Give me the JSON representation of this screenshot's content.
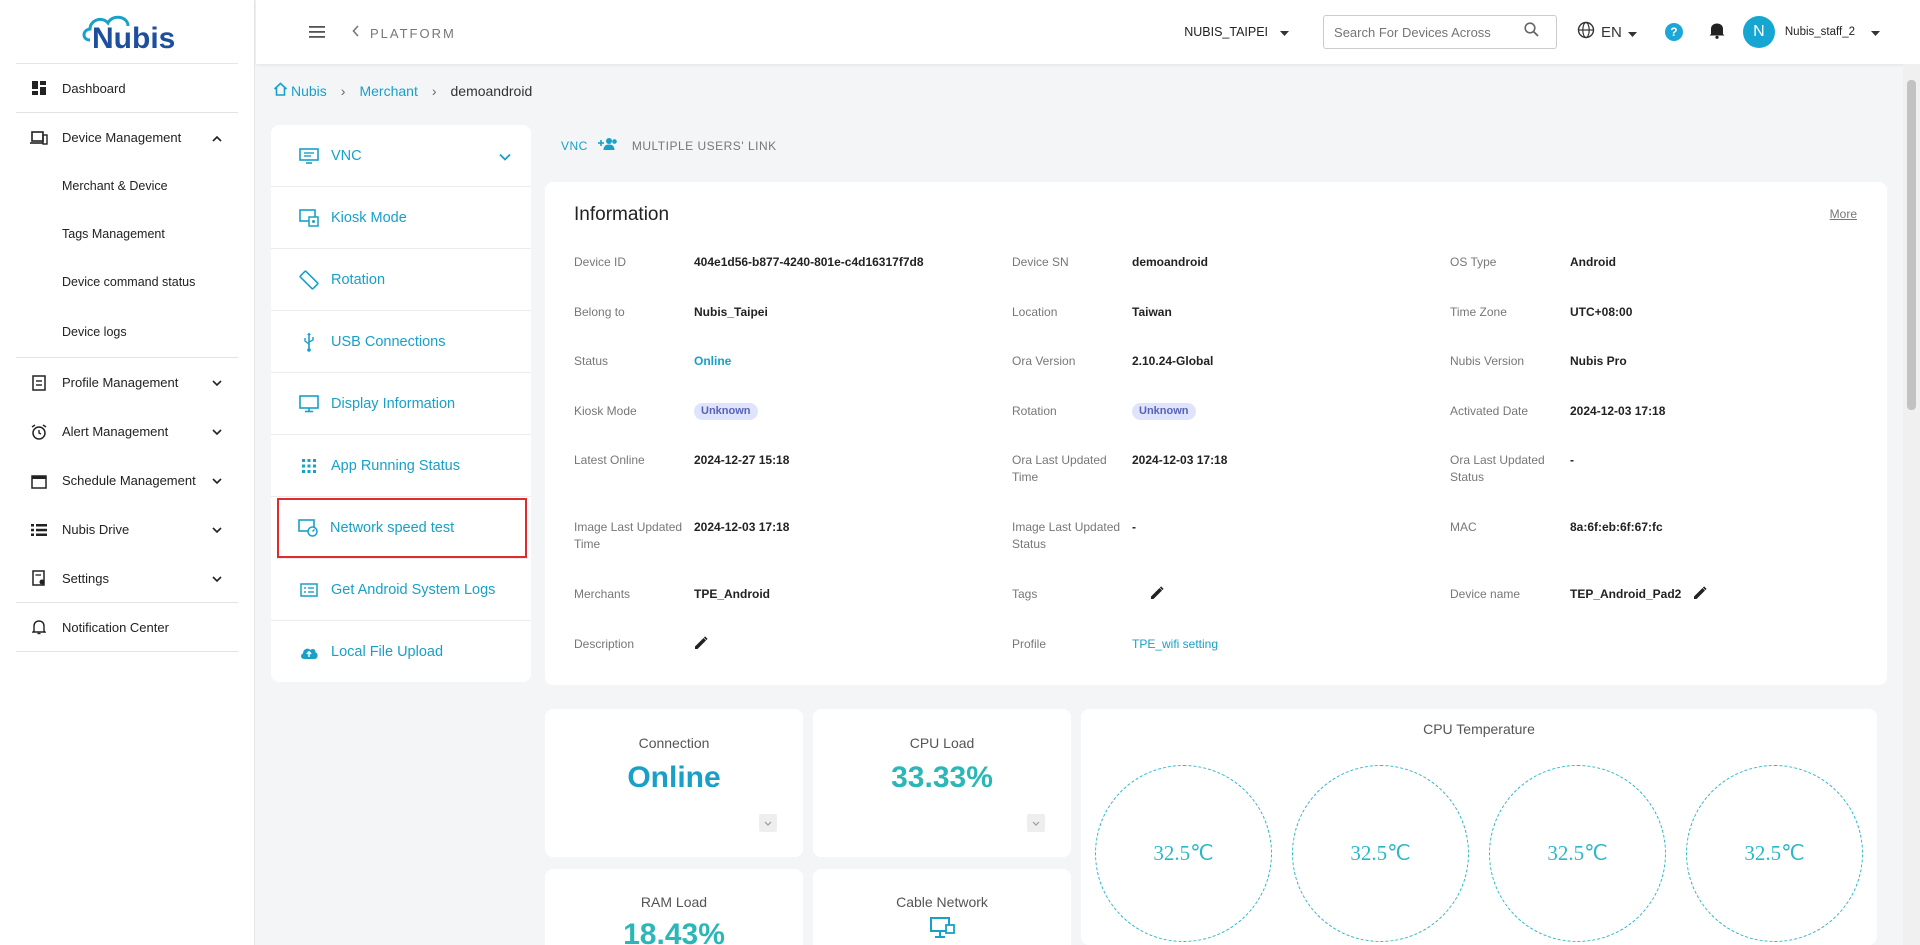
{
  "sidebar": {
    "items": [
      {
        "label": "Dashboard"
      },
      {
        "label": "Device Management"
      },
      {
        "label": "Merchant & Device"
      },
      {
        "label": "Tags Management"
      },
      {
        "label": "Device command status"
      },
      {
        "label": "Device logs"
      },
      {
        "label": "Profile Management"
      },
      {
        "label": "Alert Management"
      },
      {
        "label": "Schedule Management"
      },
      {
        "label": "Nubis Drive"
      },
      {
        "label": "Settings"
      },
      {
        "label": "Notification Center"
      }
    ]
  },
  "topbar": {
    "platform": "PLATFORM",
    "org": "NUBIS_TAIPEI",
    "search_placeholder": "Search For Devices Across",
    "lang": "EN",
    "avatar_letter": "N",
    "username": "Nubis_staff_2"
  },
  "breadcrumb": {
    "home": "Nubis",
    "merchant": "Merchant",
    "current": "demoandroid"
  },
  "menu": {
    "items": [
      {
        "label": "VNC"
      },
      {
        "label": "Kiosk Mode"
      },
      {
        "label": "Rotation"
      },
      {
        "label": "USB Connections"
      },
      {
        "label": "Display Information"
      },
      {
        "label": "App Running Status"
      },
      {
        "label": "Network speed test"
      },
      {
        "label": "Get Android System Logs"
      },
      {
        "label": "Local File Upload"
      }
    ]
  },
  "tabs": {
    "vnc": "VNC",
    "multi": "MULTIPLE USERS' LINK"
  },
  "info": {
    "title": "Information",
    "more": "More",
    "device_id": {
      "label": "Device ID",
      "value": "404e1d56-b877-4240-801e-c4d16317f7d8"
    },
    "device_sn": {
      "label": "Device SN",
      "value": "demoandroid"
    },
    "os_type": {
      "label": "OS Type",
      "value": "Android"
    },
    "belong_to": {
      "label": "Belong to",
      "value": "Nubis_Taipei"
    },
    "location": {
      "label": "Location",
      "value": "Taiwan"
    },
    "time_zone": {
      "label": "Time Zone",
      "value": "UTC+08:00"
    },
    "status": {
      "label": "Status",
      "value": "Online"
    },
    "ora_version": {
      "label": "Ora Version",
      "value": "2.10.24-Global"
    },
    "nubis_version": {
      "label": "Nubis Version",
      "value": "Nubis Pro"
    },
    "kiosk_mode": {
      "label": "Kiosk Mode",
      "value": "Unknown"
    },
    "rotation": {
      "label": "Rotation",
      "value": "Unknown"
    },
    "activated_date": {
      "label": "Activated Date",
      "value": "2024-12-03 17:18"
    },
    "latest_online": {
      "label": "Latest Online",
      "value": "2024-12-27 15:18"
    },
    "ora_last_updated_time": {
      "label": "Ora Last Updated Time",
      "value": "2024-12-03 17:18"
    },
    "ora_last_updated_status": {
      "label": "Ora Last Updated Status",
      "value": "-"
    },
    "image_last_updated_time": {
      "label": "Image Last Updated Time",
      "value": "2024-12-03 17:18"
    },
    "image_last_updated_status": {
      "label": "Image Last Updated Status",
      "value": "-"
    },
    "mac": {
      "label": "MAC",
      "value": "8a:6f:eb:6f:67:fc"
    },
    "merchants": {
      "label": "Merchants",
      "value": "TPE_Android"
    },
    "tags": {
      "label": "Tags",
      "value": ""
    },
    "device_name": {
      "label": "Device name",
      "value": "TEP_Android_Pad2"
    },
    "description": {
      "label": "Description",
      "value": ""
    },
    "profile": {
      "label": "Profile",
      "value": "TPE_wifi setting"
    }
  },
  "stats": {
    "connection": {
      "title": "Connection",
      "value": "Online"
    },
    "cpu_load": {
      "title": "CPU Load",
      "value": "33.33%"
    },
    "ram_load": {
      "title": "RAM Load",
      "value": "18.43%"
    },
    "cable_network": {
      "title": "Cable Network"
    }
  },
  "cpu_temp": {
    "title": "CPU Temperature",
    "values": [
      "32.5℃",
      "32.5℃",
      "32.5℃",
      "32.5℃"
    ]
  },
  "colors": {
    "accent": "#18a0c9",
    "teal": "#2bb7c9",
    "highlight": "#e32a2a"
  }
}
